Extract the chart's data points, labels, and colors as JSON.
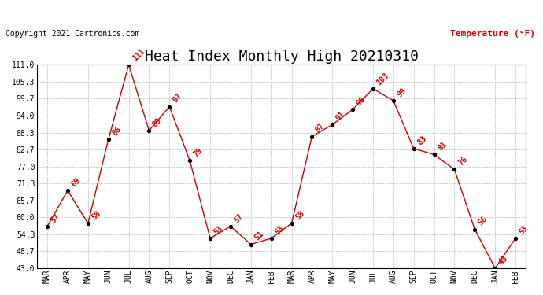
{
  "title": "Heat Index Monthly High 20210310",
  "copyright_text": "Copyright 2021 Cartronics.com",
  "ylabel": "Temperature (°F)",
  "months": [
    "MAR",
    "APR",
    "MAY",
    "JUN",
    "JUL",
    "AUG",
    "SEP",
    "OCT",
    "NOV",
    "DEC",
    "JAN",
    "FEB",
    "MAR",
    "APR",
    "MAY",
    "JUN",
    "JUL",
    "AUG",
    "SEP",
    "OCT",
    "NOV",
    "DEC",
    "JAN",
    "FEB"
  ],
  "values": [
    57,
    69,
    58,
    86,
    111,
    89,
    97,
    79,
    53,
    57,
    51,
    53,
    58,
    87,
    91,
    96,
    103,
    99,
    83,
    81,
    76,
    56,
    43,
    53
  ],
  "labels": [
    "57",
    "69",
    "58",
    "86",
    "111",
    "89",
    "97",
    "79",
    "53",
    "57",
    "51",
    "53",
    "58",
    "87",
    "91",
    "96",
    "103",
    "99",
    "83",
    "81",
    "76",
    "56",
    "43",
    "53"
  ],
  "yticks": [
    43.0,
    48.7,
    54.3,
    60.0,
    65.7,
    71.3,
    77.0,
    82.7,
    88.3,
    94.0,
    99.7,
    105.3,
    111.0
  ],
  "ytick_labels": [
    "43.0",
    "48.7",
    "54.3",
    "60.0",
    "65.7",
    "71.3",
    "77.0",
    "82.7",
    "88.3",
    "94.0",
    "99.7",
    "105.3",
    "111.0"
  ],
  "line_color": "#cc0000",
  "marker_color": "#000000",
  "bg_color": "#ffffff",
  "grid_color": "#bbbbbb",
  "title_fontsize": 13,
  "label_fontsize": 7,
  "ylabel_color": "#cc0000",
  "copyright_color": "#000000",
  "copyright_fontsize": 7,
  "ylim_min": 43.0,
  "ylim_max": 111.0
}
